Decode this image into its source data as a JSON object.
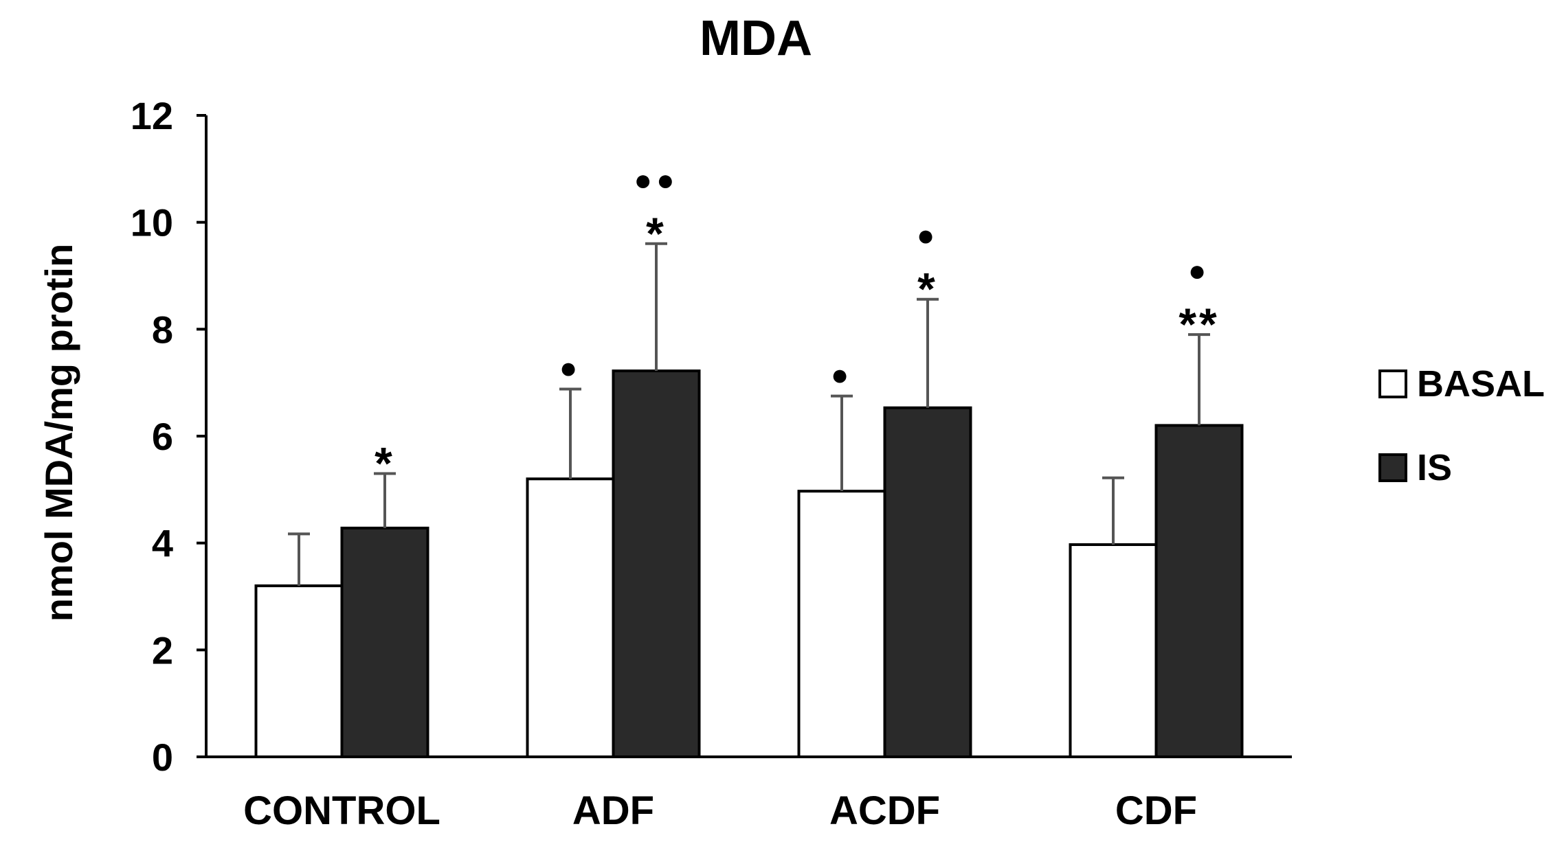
{
  "chart_data": {
    "type": "bar",
    "title": "MDA",
    "xlabel": "",
    "ylabel": "nmol MDA/mg protin",
    "ylim": [
      0,
      12
    ],
    "yticks": [
      0,
      2,
      4,
      6,
      8,
      10,
      12
    ],
    "categories": [
      "CONTROL",
      "ADF",
      "ACDF",
      "CDF"
    ],
    "series": [
      {
        "name": "BASAL",
        "color": "#ffffff",
        "values": [
          3.2,
          5.2,
          4.97,
          3.97
        ],
        "errors": [
          0.97,
          1.68,
          1.78,
          1.25
        ],
        "annotations": [
          "",
          "●",
          "●",
          ""
        ]
      },
      {
        "name": "IS",
        "color": "#2a2a2a",
        "values": [
          4.28,
          7.22,
          6.53,
          6.2
        ],
        "errors": [
          1.02,
          2.38,
          2.03,
          1.7
        ],
        "annotations": [
          "*",
          "●●\n*",
          "●\n*",
          "●\n**"
        ]
      }
    ],
    "legend_position": "right",
    "grid": false
  }
}
